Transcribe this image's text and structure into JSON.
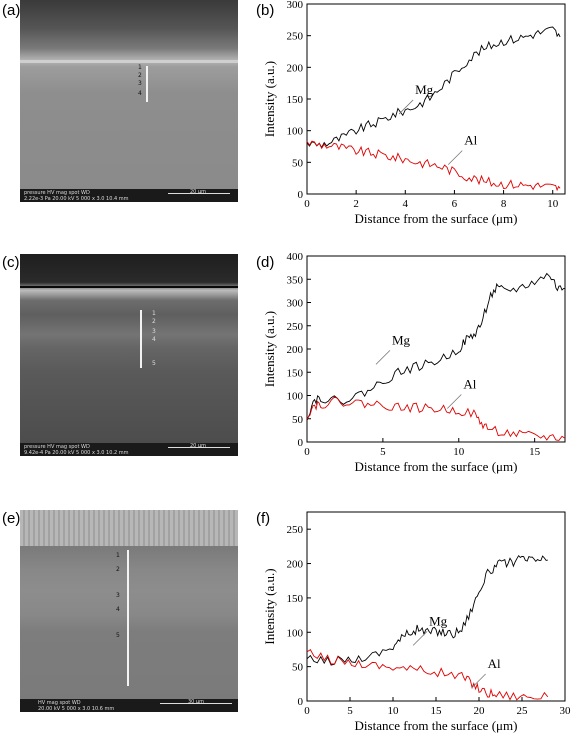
{
  "panels": {
    "a": "(a)",
    "b": "(b)",
    "c": "(c)",
    "d": "(d)",
    "e": "(e)",
    "f": "(f)"
  },
  "sem_images": [
    {
      "id": "a",
      "meta1": "pressure  HV   mag  spot  WD",
      "meta2": "2.22e-3 Pa 20.00 kV 5 000 x 3.0 10.4 mm",
      "scale": "20 μm",
      "markers": [
        "1",
        "2",
        "3",
        "4"
      ]
    },
    {
      "id": "c",
      "meta1": "pressure  HV   mag  spot  WD",
      "meta2": "9.42e-4 Pa 20.00 kV 5 000 x 3.0 10.2 mm",
      "scale": "20 μm",
      "markers": [
        "1",
        "2",
        "3",
        "4",
        "5"
      ]
    },
    {
      "id": "e",
      "meta1": "HV   mag  spot  WD",
      "meta2": "20.00 kV 5 000 x 3.0 10.6 mm",
      "scale": "30 μm",
      "markers": [
        "1",
        "2",
        "3",
        "4",
        "5"
      ]
    }
  ],
  "chart_data": [
    {
      "type": "line",
      "panel": "b",
      "xlabel": "Distance from the surface (μm)",
      "ylabel": "Intensity (a.u.)",
      "xlim": [
        0,
        10.5
      ],
      "ylim": [
        0,
        300
      ],
      "xticks": [
        0,
        2,
        4,
        6,
        8,
        10
      ],
      "yticks": [
        0,
        50,
        100,
        150,
        200,
        250,
        300
      ],
      "series": [
        {
          "name": "Mg",
          "color": "#000000",
          "points": [
            [
              0,
              80
            ],
            [
              0.5,
              78
            ],
            [
              1,
              82
            ],
            [
              1.5,
              90
            ],
            [
              2,
              100
            ],
            [
              2.5,
              108
            ],
            [
              3,
              115
            ],
            [
              3.5,
              125
            ],
            [
              4,
              132
            ],
            [
              4.5,
              140
            ],
            [
              5,
              152
            ],
            [
              5.5,
              170
            ],
            [
              6,
              190
            ],
            [
              6.5,
              210
            ],
            [
              7,
              225
            ],
            [
              7.5,
              235
            ],
            [
              8,
              242
            ],
            [
              8.5,
              245
            ],
            [
              9,
              250
            ],
            [
              9.5,
              255
            ],
            [
              10,
              260
            ],
            [
              10.3,
              248
            ]
          ]
        },
        {
          "name": "Al",
          "color": "#e00000",
          "points": [
            [
              0,
              82
            ],
            [
              0.5,
              78
            ],
            [
              1,
              76
            ],
            [
              1.5,
              72
            ],
            [
              2,
              68
            ],
            [
              2.5,
              65
            ],
            [
              3,
              62
            ],
            [
              3.5,
              58
            ],
            [
              4,
              55
            ],
            [
              4.5,
              50
            ],
            [
              5,
              47
            ],
            [
              5.5,
              43
            ],
            [
              6,
              35
            ],
            [
              6.5,
              28
            ],
            [
              7,
              22
            ],
            [
              7.5,
              18
            ],
            [
              8,
              16
            ],
            [
              8.5,
              15
            ],
            [
              9,
              14
            ],
            [
              9.5,
              13
            ],
            [
              10,
              11
            ],
            [
              10.3,
              9
            ]
          ]
        }
      ],
      "annotations": [
        {
          "text": "Mg",
          "x": 4.4,
          "y": 158
        },
        {
          "text": "Al",
          "x": 6.4,
          "y": 78
        }
      ]
    },
    {
      "type": "line",
      "panel": "d",
      "xlabel": "Distance from the surface (μm)",
      "ylabel": "Intensity (a.u.)",
      "xlim": [
        0,
        17
      ],
      "ylim": [
        0,
        400
      ],
      "xticks": [
        0,
        5,
        10,
        15
      ],
      "yticks": [
        0,
        50,
        100,
        150,
        200,
        250,
        300,
        350,
        400
      ],
      "series": [
        {
          "name": "Mg",
          "color": "#000000",
          "points": [
            [
              0,
              55
            ],
            [
              0.5,
              92
            ],
            [
              1,
              95
            ],
            [
              2,
              88
            ],
            [
              3,
              95
            ],
            [
              4,
              110
            ],
            [
              5,
              130
            ],
            [
              6,
              150
            ],
            [
              7,
              160
            ],
            [
              8,
              168
            ],
            [
              9,
              180
            ],
            [
              10,
              200
            ],
            [
              10.5,
              220
            ],
            [
              11,
              230
            ],
            [
              11.5,
              255
            ],
            [
              12,
              310
            ],
            [
              12.5,
              330
            ],
            [
              13,
              325
            ],
            [
              14,
              330
            ],
            [
              15,
              345
            ],
            [
              16,
              360
            ],
            [
              16.5,
              330
            ],
            [
              17,
              330
            ]
          ]
        },
        {
          "name": "Al",
          "color": "#e00000",
          "points": [
            [
              0,
              58
            ],
            [
              0.5,
              80
            ],
            [
              1,
              82
            ],
            [
              2,
              88
            ],
            [
              3,
              85
            ],
            [
              4,
              82
            ],
            [
              5,
              80
            ],
            [
              6,
              75
            ],
            [
              7,
              74
            ],
            [
              8,
              72
            ],
            [
              9,
              70
            ],
            [
              10,
              68
            ],
            [
              11,
              60
            ],
            [
              11.5,
              40
            ],
            [
              12,
              28
            ],
            [
              13,
              20
            ],
            [
              14,
              15
            ],
            [
              15,
              12
            ],
            [
              16,
              10
            ],
            [
              17,
              8
            ]
          ]
        }
      ],
      "annotations": [
        {
          "text": "Mg",
          "x": 5.6,
          "y": 210
        },
        {
          "text": "Al",
          "x": 10.3,
          "y": 115
        }
      ]
    },
    {
      "type": "line",
      "panel": "f",
      "xlabel": "Distance from the surface (μm)",
      "ylabel": "Intensity (a.u.)",
      "xlim": [
        0,
        30
      ],
      "ylim": [
        0,
        275
      ],
      "xticks": [
        0,
        5,
        10,
        15,
        20,
        25,
        30
      ],
      "yticks": [
        0,
        50,
        100,
        150,
        200,
        250
      ],
      "series": [
        {
          "name": "Mg",
          "color": "#000000",
          "points": [
            [
              0,
              60
            ],
            [
              2,
              58
            ],
            [
              4,
              60
            ],
            [
              6,
              62
            ],
            [
              8,
              68
            ],
            [
              10,
              80
            ],
            [
              11,
              92
            ],
            [
              12,
              100
            ],
            [
              13,
              105
            ],
            [
              14,
              100
            ],
            [
              15,
              102
            ],
            [
              16,
              100
            ],
            [
              17,
              98
            ],
            [
              18,
              105
            ],
            [
              19,
              130
            ],
            [
              20,
              160
            ],
            [
              21,
              185
            ],
            [
              22,
              198
            ],
            [
              23,
              200
            ],
            [
              24,
              203
            ],
            [
              25,
              206
            ],
            [
              26,
              205
            ],
            [
              27,
              206
            ],
            [
              28,
              205
            ]
          ]
        },
        {
          "name": "Al",
          "color": "#e00000",
          "points": [
            [
              0,
              70
            ],
            [
              2,
              62
            ],
            [
              4,
              58
            ],
            [
              6,
              55
            ],
            [
              8,
              52
            ],
            [
              10,
              50
            ],
            [
              12,
              47
            ],
            [
              14,
              44
            ],
            [
              16,
              40
            ],
            [
              18,
              36
            ],
            [
              19,
              28
            ],
            [
              20,
              18
            ],
            [
              21,
              12
            ],
            [
              22,
              10
            ],
            [
              24,
              8
            ],
            [
              26,
              7
            ],
            [
              28,
              6
            ]
          ]
        }
      ],
      "annotations": [
        {
          "text": "Mg",
          "x": 14.2,
          "y": 110
        },
        {
          "text": "Al",
          "x": 21,
          "y": 48
        }
      ]
    }
  ]
}
